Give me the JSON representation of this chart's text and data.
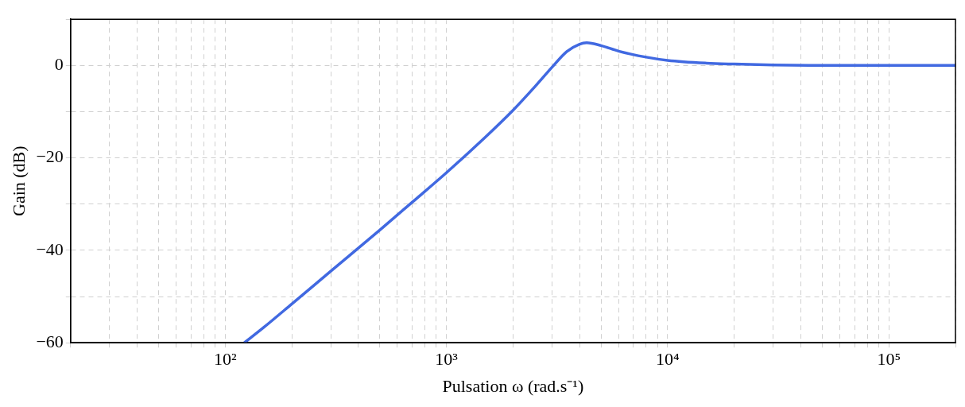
{
  "chart_data": {
    "type": "line",
    "xlabel": "Pulsation ω (rad.s⁻¹)",
    "ylabel": "Gain (dB)",
    "log": "x",
    "grid": true,
    "marker": "none",
    "line_style": "solid",
    "x": [
      122,
      150,
      200,
      300,
      500,
      700,
      1000,
      1500,
      2000,
      2500,
      3000,
      3500,
      4000,
      4300,
      5000,
      6000,
      8000,
      10000,
      15000,
      20000,
      30000,
      50000,
      100000,
      200000
    ],
    "series": [
      {
        "color": "#4169e1",
        "values": [
          -60.0,
          -56.6,
          -51.6,
          -44.5,
          -35.6,
          -29.6,
          -23.2,
          -15.5,
          -9.7,
          -4.7,
          -0.4,
          3.0,
          4.6,
          4.9,
          4.3,
          3.1,
          1.8,
          1.1,
          0.5,
          0.3,
          0.1,
          0.0,
          0.0,
          0.0
        ]
      }
    ],
    "xlim": [
      20,
      200000
    ],
    "ylim": [
      -60,
      10
    ],
    "xticks": [
      {
        "value": 20,
        "label": null
      },
      {
        "value": 30,
        "label": null
      },
      {
        "value": 40,
        "label": null
      },
      {
        "value": 50,
        "label": null
      },
      {
        "value": 60,
        "label": null
      },
      {
        "value": 70,
        "label": null
      },
      {
        "value": 80,
        "label": null
      },
      {
        "value": 90,
        "label": null
      },
      {
        "value": 100,
        "label": "10²"
      },
      {
        "value": 200,
        "label": null
      },
      {
        "value": 300,
        "label": null
      },
      {
        "value": 400,
        "label": null
      },
      {
        "value": 500,
        "label": null
      },
      {
        "value": 600,
        "label": null
      },
      {
        "value": 700,
        "label": null
      },
      {
        "value": 800,
        "label": null
      },
      {
        "value": 900,
        "label": null
      },
      {
        "value": 1000,
        "label": "10³"
      },
      {
        "value": 2000,
        "label": null
      },
      {
        "value": 3000,
        "label": null
      },
      {
        "value": 4000,
        "label": null
      },
      {
        "value": 5000,
        "label": null
      },
      {
        "value": 6000,
        "label": null
      },
      {
        "value": 7000,
        "label": null
      },
      {
        "value": 8000,
        "label": null
      },
      {
        "value": 9000,
        "label": null
      },
      {
        "value": 10000,
        "label": "10⁴"
      },
      {
        "value": 20000,
        "label": null
      },
      {
        "value": 30000,
        "label": null
      },
      {
        "value": 40000,
        "label": null
      },
      {
        "value": 50000,
        "label": null
      },
      {
        "value": 60000,
        "label": null
      },
      {
        "value": 70000,
        "label": null
      },
      {
        "value": 80000,
        "label": null
      },
      {
        "value": 90000,
        "label": null
      },
      {
        "value": 100000,
        "label": "10⁵"
      },
      {
        "value": 200000,
        "label": null
      }
    ],
    "yticks": [
      -60,
      {
        "value": -50,
        "label": null
      },
      -40,
      {
        "value": -30,
        "label": null
      },
      -20,
      {
        "value": -10,
        "label": null
      },
      0,
      {
        "value": 10,
        "label": null
      }
    ]
  }
}
